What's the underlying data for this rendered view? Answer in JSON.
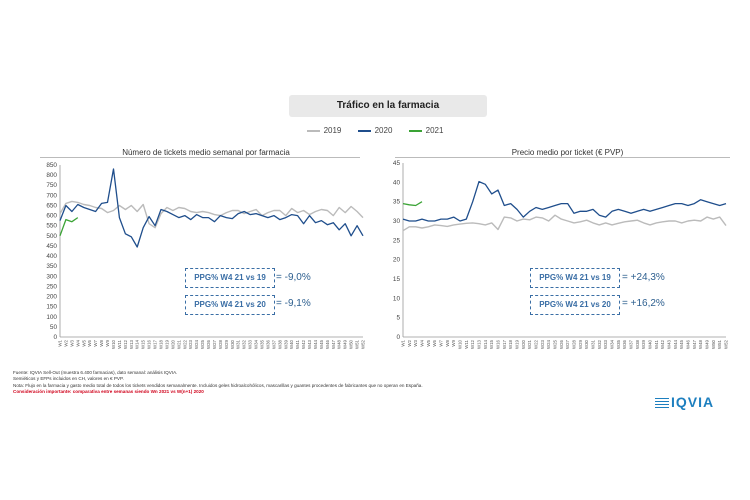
{
  "title": "Tráfico en la farmacia",
  "legend": [
    {
      "name": "2019",
      "color": "#bbbbbb"
    },
    {
      "name": "2020",
      "color": "#1f4e8c"
    },
    {
      "name": "2021",
      "color": "#3aa335"
    }
  ],
  "colors": {
    "y2019": "#bbbbbb",
    "y2020": "#1f4e8c",
    "y2021": "#3aa335",
    "accent": "#3a6ea5"
  },
  "weeks": [
    "W1",
    "W2",
    "W3",
    "W4",
    "W5",
    "W6",
    "W7",
    "W8",
    "W9",
    "W10",
    "W11",
    "W12",
    "W13",
    "W14",
    "W15",
    "W16",
    "W17",
    "W18",
    "W19",
    "W20",
    "W21",
    "W22",
    "W23",
    "W24",
    "W25",
    "W26",
    "W27",
    "W28",
    "W29",
    "W30",
    "W31",
    "W32",
    "W33",
    "W34",
    "W35",
    "W36",
    "W37",
    "W38",
    "W39",
    "W40",
    "W41",
    "W42",
    "W43",
    "W44",
    "W45",
    "W46",
    "W47",
    "W48",
    "W49",
    "W50",
    "W51",
    "W52"
  ],
  "chart_data": [
    {
      "type": "line",
      "title": "Número de tickets medio semanal por farmacia",
      "ylim": [
        0,
        850
      ],
      "yticks": [
        0,
        50,
        100,
        150,
        200,
        250,
        300,
        350,
        400,
        450,
        500,
        550,
        600,
        650,
        700,
        750,
        800,
        850
      ],
      "series": [
        {
          "name": "2019",
          "values": [
            610,
            660,
            670,
            665,
            655,
            650,
            640,
            635,
            615,
            625,
            650,
            630,
            650,
            620,
            655,
            560,
            540,
            610,
            640,
            625,
            640,
            635,
            620,
            615,
            620,
            615,
            605,
            600,
            615,
            625,
            625,
            610,
            620,
            630,
            600,
            615,
            625,
            625,
            600,
            635,
            615,
            625,
            605,
            620,
            630,
            625,
            600,
            640,
            615,
            645,
            620,
            590
          ]
        },
        {
          "name": "2020",
          "values": [
            575,
            650,
            620,
            655,
            640,
            630,
            620,
            660,
            665,
            830,
            590,
            510,
            495,
            445,
            540,
            595,
            550,
            630,
            620,
            605,
            590,
            600,
            580,
            605,
            590,
            590,
            570,
            600,
            590,
            585,
            610,
            620,
            605,
            610,
            600,
            590,
            600,
            580,
            590,
            605,
            600,
            560,
            600,
            565,
            575,
            555,
            565,
            530,
            560,
            500,
            550,
            500
          ]
        },
        {
          "name": "2021",
          "values": [
            500,
            580,
            570,
            590
          ]
        }
      ]
    },
    {
      "type": "line",
      "title": "Precio medio por ticket (€ PVP)",
      "ylim": [
        0,
        45
      ],
      "yticks": [
        0,
        5,
        10,
        15,
        20,
        25,
        30,
        35,
        40,
        45
      ],
      "series": [
        {
          "name": "2019",
          "values": [
            27.5,
            28.5,
            28.5,
            28.2,
            28.5,
            29.0,
            28.8,
            28.6,
            29.0,
            29.2,
            29.4,
            29.5,
            29.3,
            29.0,
            29.5,
            27.8,
            31.0,
            30.8,
            30.0,
            30.5,
            30.3,
            31.0,
            30.8,
            30.0,
            31.5,
            30.5,
            30.0,
            29.5,
            29.8,
            30.2,
            29.5,
            29.0,
            29.5,
            29.0,
            29.4,
            29.8,
            30.0,
            30.2,
            29.5,
            29.0,
            29.5,
            29.8,
            30.0,
            30.0,
            29.5,
            30.0,
            30.2,
            30.0,
            31.0,
            30.5,
            31.0,
            28.8
          ]
        },
        {
          "name": "2020",
          "values": [
            30.5,
            30.0,
            30.0,
            30.5,
            30.0,
            30.0,
            30.5,
            30.5,
            31.0,
            30.0,
            30.5,
            35.0,
            40.2,
            39.5,
            37.0,
            38.0,
            34.0,
            34.5,
            33.0,
            31.0,
            32.5,
            33.5,
            33.0,
            33.5,
            34.0,
            34.5,
            34.5,
            32.0,
            32.5,
            32.5,
            33.0,
            31.5,
            31.0,
            32.5,
            33.0,
            32.5,
            32.0,
            32.5,
            33.0,
            32.5,
            33.0,
            33.5,
            34.0,
            34.5,
            34.5,
            34.0,
            34.5,
            35.5,
            35.0,
            34.5,
            34.0,
            34.5
          ]
        },
        {
          "name": "2021",
          "values": [
            34.5,
            34.2,
            34.0,
            35.0
          ]
        }
      ]
    }
  ],
  "ppg": {
    "left": [
      {
        "label": "PPG% W4 21 vs 19",
        "value": "= -9,0%"
      },
      {
        "label": "PPG% W4 21 vs 20",
        "value": "= -9,1%"
      }
    ],
    "right": [
      {
        "label": "PPG% W4 21 vs 19",
        "value": "= +24,3%"
      },
      {
        "label": "PPG% W4 21 vs 20",
        "value": "= +16,2%"
      }
    ]
  },
  "footnotes": {
    "line1": "Fuente: IQVIA Sell-Out (muestra 6.400 farmacias), dato semanal: análisis IQVIA.",
    "line2": "Semiéticos y EFPs incluidos en CH, valores en € PVP.",
    "line3": "Nota: Flujo en la farmacia y gasto medio total de todos los tickets vendidos semanalmente. Incluidos geles hidroalcohólicos, mascarillas y guantes procedentes de fabricantes que no operan en España.",
    "line4": "Consideración importante: comparativa entre semanas siendo Wn 2021 vs W(n+1) 2020"
  },
  "logo": "IQVIA"
}
